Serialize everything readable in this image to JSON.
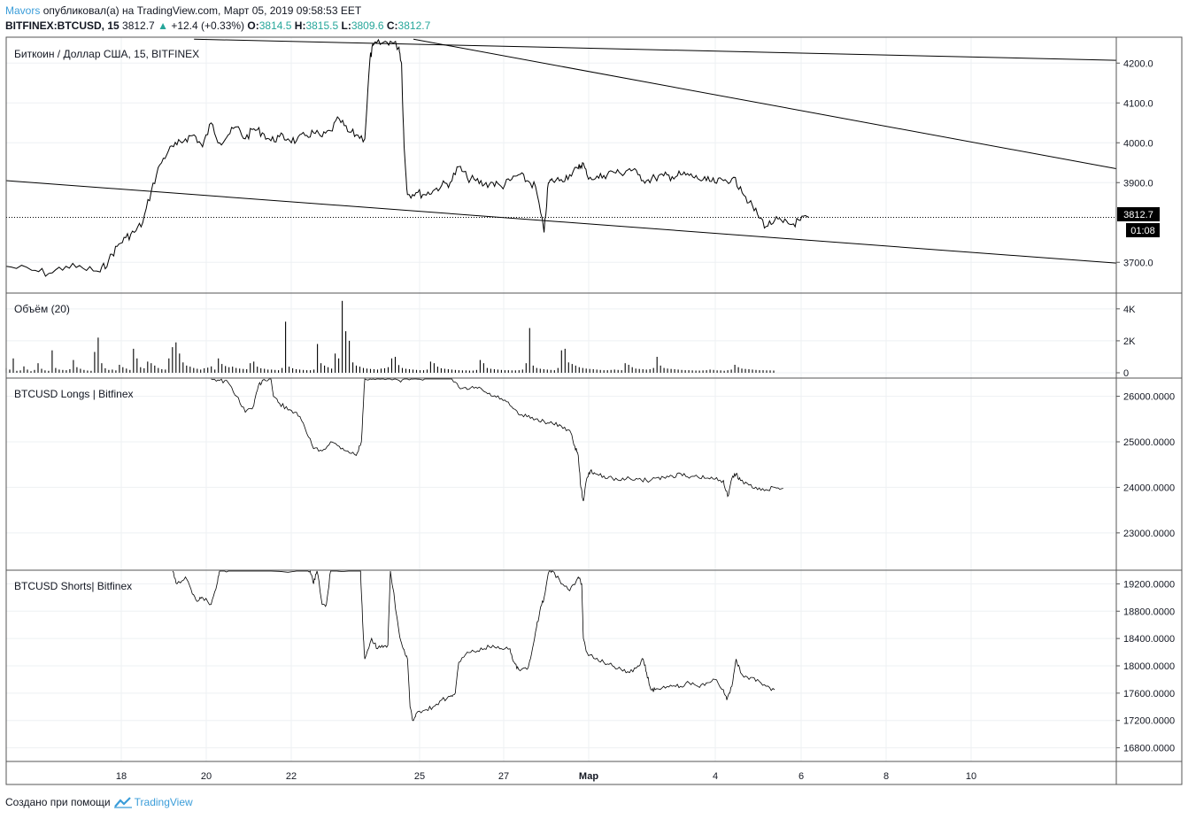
{
  "header": {
    "author": "Mavors",
    "published_text": "опубликовал(а) на TradingView.com, Март 05, 2019 09:58:53 EET",
    "symbol": "BITFINEX:BTCUSD, 15",
    "last_price": "3812.7",
    "change_arrow": "▲",
    "change": "+12.4 (+0.33%)",
    "o_label": "O:",
    "o_value": "3814.5",
    "h_label": "H:",
    "h_value": "3815.5",
    "l_label": "L:",
    "l_value": "3809.6",
    "c_label": "C:",
    "c_value": "3812.7"
  },
  "panes": {
    "price": {
      "title": "Биткоин / Доллар США, 15, BITFINEX",
      "price_badge": "3812.7",
      "countdown_badge": "01:08"
    },
    "volume": {
      "title": "Объём (20)"
    },
    "longs": {
      "title": "BTCUSD Longs | Bitfinex"
    },
    "shorts": {
      "title": "BTCUSD Shorts| Bitfinex"
    }
  },
  "footer": {
    "text": "Создано при помощи",
    "brand": "TradingView"
  },
  "colors": {
    "line": "#000000",
    "author": "#3b9dd9",
    "up": "#26a69a",
    "grid": "#eef0f3",
    "pane_border": "#555555"
  },
  "chart_data": [
    {
      "type": "line",
      "name": "price",
      "x_ticks": [
        "18",
        "20",
        "22",
        "25",
        "27",
        "Мар",
        "4",
        "6",
        "8",
        "10"
      ],
      "y_ticks": [
        "4200.0",
        "4100.0",
        "4000.0",
        "3900.0",
        "3700.0"
      ],
      "ylim": [
        3625,
        4265
      ],
      "points": [
        [
          0,
          3690
        ],
        [
          3,
          3680
        ],
        [
          5,
          3672
        ],
        [
          7,
          3690
        ],
        [
          9,
          3685
        ],
        [
          11,
          3676
        ],
        [
          12,
          3705
        ],
        [
          13,
          3740
        ],
        [
          14,
          3762
        ],
        [
          15,
          3775
        ],
        [
          16,
          3800
        ],
        [
          17,
          3880
        ],
        [
          18,
          3945
        ],
        [
          19,
          3980
        ],
        [
          20,
          3995
        ],
        [
          21,
          4010
        ],
        [
          22,
          4020
        ],
        [
          23,
          3990
        ],
        [
          24,
          4050
        ],
        [
          25,
          4000
        ],
        [
          26,
          4020
        ],
        [
          27,
          4040
        ],
        [
          28,
          4010
        ],
        [
          29,
          4035
        ],
        [
          30,
          4025
        ],
        [
          31,
          4005
        ],
        [
          32,
          4015
        ],
        [
          33,
          4010
        ],
        [
          34,
          4005
        ],
        [
          35,
          4018
        ],
        [
          36,
          4025
        ],
        [
          37,
          4015
        ],
        [
          38,
          4030
        ],
        [
          39,
          4060
        ],
        [
          40,
          4028
        ],
        [
          41,
          4020
        ],
        [
          42,
          4010
        ],
        [
          42.6,
          4210
        ],
        [
          43,
          4245
        ],
        [
          44,
          4250
        ],
        [
          45,
          4255
        ],
        [
          46,
          4240
        ],
        [
          46.3,
          4200
        ],
        [
          46.6,
          3990
        ],
        [
          47,
          3870
        ],
        [
          48,
          3875
        ],
        [
          49,
          3870
        ],
        [
          50,
          3880
        ],
        [
          51,
          3893
        ],
        [
          52,
          3900
        ],
        [
          53,
          3940
        ],
        [
          54,
          3912
        ],
        [
          55,
          3905
        ],
        [
          56,
          3895
        ],
        [
          57,
          3900
        ],
        [
          58,
          3890
        ],
        [
          59,
          3905
        ],
        [
          60,
          3920
        ],
        [
          61,
          3905
        ],
        [
          62,
          3890
        ],
        [
          63,
          3775
        ],
        [
          63.5,
          3900
        ],
        [
          64,
          3905
        ],
        [
          65,
          3908
        ],
        [
          66,
          3920
        ],
        [
          67,
          3935
        ],
        [
          67.5,
          3950
        ],
        [
          68,
          3920
        ],
        [
          69,
          3910
        ],
        [
          70,
          3918
        ],
        [
          71,
          3928
        ],
        [
          72,
          3922
        ],
        [
          73,
          3935
        ],
        [
          74,
          3920
        ],
        [
          75,
          3905
        ],
        [
          76,
          3912
        ],
        [
          77,
          3917
        ],
        [
          78,
          3915
        ],
        [
          79,
          3920
        ],
        [
          80,
          3918
        ],
        [
          81,
          3910
        ],
        [
          82,
          3905
        ],
        [
          83,
          3900
        ],
        [
          84,
          3905
        ],
        [
          85,
          3910
        ],
        [
          86,
          3890
        ],
        [
          87,
          3850
        ],
        [
          88,
          3820
        ],
        [
          89,
          3790
        ],
        [
          90,
          3805
        ],
        [
          91,
          3800
        ],
        [
          92,
          3795
        ],
        [
          93,
          3805
        ],
        [
          94,
          3812.7
        ]
      ],
      "trendlines": [
        {
          "x1": 22,
          "y1": 4260,
          "x2": 130,
          "y2": 4207
        },
        {
          "x1": 47.7,
          "y1": 4260,
          "x2": 130,
          "y2": 3935
        },
        {
          "x1": 0,
          "y1": 3905,
          "x2": 130,
          "y2": 3698
        }
      ],
      "last_value": 3812.7
    },
    {
      "type": "bar",
      "name": "volume",
      "title": "Объём (20)",
      "y_ticks": [
        "4K",
        "2K",
        "0"
      ],
      "ylim": [
        0,
        4600
      ],
      "values": [
        300,
        200,
        900,
        120,
        150,
        400,
        200,
        100,
        180,
        600,
        250,
        150,
        120,
        1400,
        300,
        200,
        180,
        160,
        220,
        800,
        350,
        250,
        180,
        140,
        120,
        1300,
        2200,
        600,
        280,
        180,
        200,
        150,
        500,
        350,
        260,
        180,
        1500,
        900,
        350,
        280,
        700,
        600,
        450,
        300,
        220,
        200,
        900,
        1600,
        1900,
        1200,
        650,
        450,
        380,
        300,
        250,
        200,
        280,
        320,
        400,
        200,
        900,
        550,
        420,
        350,
        380,
        300,
        260,
        240,
        220,
        600,
        700,
        380,
        280,
        250,
        200,
        200,
        180,
        160,
        300,
        3200,
        380,
        280,
        220,
        200,
        180,
        160,
        160,
        200,
        1800,
        600,
        450,
        350,
        260,
        1200,
        900,
        4500,
        2600,
        2000,
        650,
        450,
        380,
        300,
        260,
        240,
        220,
        200,
        260,
        280,
        350,
        900,
        1000,
        480,
        300,
        250,
        220,
        200,
        180,
        160,
        160,
        200,
        700,
        600,
        380,
        280,
        250,
        220,
        200,
        180,
        160,
        150,
        150,
        140,
        140,
        180,
        800,
        600,
        300,
        250,
        220,
        200,
        180,
        160,
        160,
        150,
        150,
        160,
        200,
        600,
        2800,
        450,
        300,
        250,
        220,
        200,
        180,
        160,
        300,
        1400,
        1500,
        650,
        550,
        450,
        350,
        300,
        260,
        240,
        220,
        200,
        180,
        160,
        160,
        180,
        200,
        180,
        160,
        600,
        500,
        350,
        260,
        240,
        220,
        200,
        220,
        300,
        1000,
        450,
        300,
        260,
        240,
        220,
        200,
        180,
        160,
        160,
        150,
        140,
        140,
        150,
        160,
        200,
        180,
        150,
        150,
        130,
        160,
        200,
        500,
        350,
        260,
        240,
        220,
        200,
        180,
        160,
        160,
        150,
        150,
        140
      ]
    },
    {
      "type": "line",
      "name": "BTCUSD Longs | Bitfinex",
      "y_ticks": [
        "26000.0000",
        "25000.0000",
        "24000.0000",
        "23000.0000"
      ],
      "ylim": [
        22200,
        26400
      ],
      "points": [
        [
          24,
          26400
        ],
        [
          25,
          26350
        ],
        [
          26,
          26300
        ],
        [
          27,
          26000
        ],
        [
          28,
          25650
        ],
        [
          29,
          25800
        ],
        [
          29.5,
          26200
        ],
        [
          30,
          26350
        ],
        [
          31,
          26400
        ],
        [
          31.3,
          26000
        ],
        [
          32,
          25850
        ],
        [
          33,
          25700
        ],
        [
          34,
          25650
        ],
        [
          35,
          25300
        ],
        [
          36,
          24850
        ],
        [
          37,
          24800
        ],
        [
          38,
          25000
        ],
        [
          39,
          24900
        ],
        [
          40,
          24800
        ],
        [
          41,
          24700
        ],
        [
          41.6,
          25000
        ],
        [
          42,
          26400
        ],
        [
          43,
          26400
        ],
        [
          44,
          26400
        ],
        [
          45,
          26380
        ],
        [
          46,
          26350
        ],
        [
          47,
          26400
        ],
        [
          48,
          26400
        ],
        [
          49,
          26400
        ],
        [
          52,
          26400
        ],
        [
          53,
          26200
        ],
        [
          54,
          26150
        ],
        [
          55,
          26200
        ],
        [
          56,
          26100
        ],
        [
          57,
          26000
        ],
        [
          58,
          25950
        ],
        [
          59,
          25800
        ],
        [
          60,
          25600
        ],
        [
          61,
          25550
        ],
        [
          62,
          25500
        ],
        [
          63,
          25450
        ],
        [
          64,
          25400
        ],
        [
          65,
          25350
        ],
        [
          66,
          25250
        ],
        [
          66.6,
          24900
        ],
        [
          67,
          24700
        ],
        [
          67.3,
          24000
        ],
        [
          67.6,
          23700
        ],
        [
          68,
          24200
        ],
        [
          68.4,
          24350
        ],
        [
          69,
          24300
        ],
        [
          70,
          24250
        ],
        [
          71,
          24200
        ],
        [
          72,
          24150
        ],
        [
          73,
          24200
        ],
        [
          74,
          24180
        ],
        [
          75,
          24150
        ],
        [
          76,
          24200
        ],
        [
          77,
          24220
        ],
        [
          78,
          24250
        ],
        [
          79,
          24300
        ],
        [
          80,
          24200
        ],
        [
          81,
          24230
        ],
        [
          82,
          24200
        ],
        [
          83,
          24180
        ],
        [
          84,
          24150
        ],
        [
          84.5,
          23800
        ],
        [
          85,
          24200
        ],
        [
          85.5,
          24300
        ],
        [
          86,
          24150
        ],
        [
          87,
          24050
        ],
        [
          88,
          23950
        ],
        [
          89,
          23950
        ],
        [
          90,
          24000
        ],
        [
          91,
          23980
        ]
      ]
    },
    {
      "type": "line",
      "name": "BTCUSD Shorts| Bitfinex",
      "y_ticks": [
        "19200.0000",
        "18800.0000",
        "18400.0000",
        "18000.0000",
        "17600.0000",
        "17200.0000",
        "16800.0000"
      ],
      "ylim": [
        16600,
        19400
      ],
      "points": [
        [
          19.5,
          19400
        ],
        [
          20,
          19200
        ],
        [
          21,
          19300
        ],
        [
          21.8,
          19050
        ],
        [
          22.5,
          18950
        ],
        [
          23,
          19000
        ],
        [
          24,
          18900
        ],
        [
          24.7,
          19200
        ],
        [
          25,
          19400
        ],
        [
          26,
          19400
        ],
        [
          30,
          19400
        ],
        [
          35,
          19400
        ],
        [
          35.6,
          19400
        ],
        [
          36,
          19200
        ],
        [
          36.4,
          19400
        ],
        [
          37,
          18900
        ],
        [
          37.5,
          18900
        ],
        [
          38,
          19400
        ],
        [
          41.5,
          19400
        ],
        [
          41.8,
          18500
        ],
        [
          42,
          18100
        ],
        [
          42.8,
          18400
        ],
        [
          43.5,
          18250
        ],
        [
          44,
          18300
        ],
        [
          44.7,
          18300
        ],
        [
          45,
          19400
        ],
        [
          46,
          18500
        ],
        [
          46.5,
          18250
        ],
        [
          47,
          18100
        ],
        [
          47.3,
          17400
        ],
        [
          47.6,
          17200
        ],
        [
          48,
          17300
        ],
        [
          49,
          17350
        ],
        [
          50,
          17400
        ],
        [
          51,
          17500
        ],
        [
          52,
          17550
        ],
        [
          52.6,
          17600
        ],
        [
          53,
          18050
        ],
        [
          54,
          18200
        ],
        [
          55,
          18200
        ],
        [
          56,
          18250
        ],
        [
          57,
          18300
        ],
        [
          58,
          18250
        ],
        [
          59,
          18250
        ],
        [
          59.5,
          18050
        ],
        [
          60,
          17950
        ],
        [
          61,
          17950
        ],
        [
          61.4,
          18100
        ],
        [
          62,
          18500
        ],
        [
          62.5,
          18800
        ],
        [
          63,
          19000
        ],
        [
          63.6,
          19400
        ],
        [
          64,
          19400
        ],
        [
          65,
          19200
        ],
        [
          66,
          19100
        ],
        [
          67,
          19300
        ],
        [
          67.4,
          19200
        ],
        [
          67.6,
          18400
        ],
        [
          68,
          18200
        ],
        [
          69,
          18100
        ],
        [
          70,
          18050
        ],
        [
          71,
          18000
        ],
        [
          72,
          17950
        ],
        [
          73,
          17900
        ],
        [
          74,
          18000
        ],
        [
          74.6,
          18100
        ],
        [
          75,
          17900
        ],
        [
          75.5,
          17650
        ],
        [
          76,
          17650
        ],
        [
          77,
          17700
        ],
        [
          78,
          17700
        ],
        [
          79,
          17700
        ],
        [
          80,
          17750
        ],
        [
          81,
          17700
        ],
        [
          82,
          17750
        ],
        [
          83,
          17800
        ],
        [
          84,
          17650
        ],
        [
          84.4,
          17500
        ],
        [
          85,
          17700
        ],
        [
          85.5,
          18100
        ],
        [
          86,
          17900
        ],
        [
          87,
          17800
        ],
        [
          88,
          17800
        ],
        [
          89,
          17700
        ],
        [
          90,
          17650
        ]
      ]
    }
  ]
}
